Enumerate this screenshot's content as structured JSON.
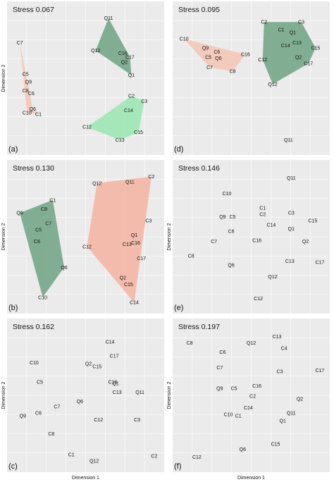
{
  "figure": {
    "x_axis_title": "Dimension 1",
    "y_axis_title": "Dimension 2"
  },
  "chart_data": [
    {
      "type": "scatter",
      "panel_letter": "(a)",
      "stress_label": "Stress 0.067",
      "xlabel": "",
      "ylabel": "Dimension 2",
      "xlim": [
        0,
        100
      ],
      "ylim": [
        0,
        100
      ],
      "grid": true,
      "points": [
        {
          "label": "C7",
          "x": 4,
          "y": 79
        },
        {
          "label": "C5",
          "x": 8,
          "y": 55
        },
        {
          "label": "Q9",
          "x": 10,
          "y": 49
        },
        {
          "label": "C8",
          "x": 8,
          "y": 42
        },
        {
          "label": "C6",
          "x": 12,
          "y": 40
        },
        {
          "label": "Q6",
          "x": 13,
          "y": 28
        },
        {
          "label": "C10",
          "x": 9,
          "y": 25
        },
        {
          "label": "C1",
          "x": 17,
          "y": 24
        },
        {
          "label": "Q11",
          "x": 66,
          "y": 98
        },
        {
          "label": "Q12",
          "x": 57,
          "y": 73
        },
        {
          "label": "C16",
          "x": 76,
          "y": 71
        },
        {
          "label": "C17",
          "x": 81,
          "y": 68
        },
        {
          "label": "Q2",
          "x": 77,
          "y": 64
        },
        {
          "label": "Q1",
          "x": 82,
          "y": 54
        },
        {
          "label": "C2",
          "x": 82,
          "y": 38
        },
        {
          "label": "C3",
          "x": 91,
          "y": 34
        },
        {
          "label": "C14",
          "x": 80,
          "y": 27
        },
        {
          "label": "C12",
          "x": 51,
          "y": 14
        },
        {
          "label": "C15",
          "x": 87,
          "y": 10
        },
        {
          "label": "C13",
          "x": 74,
          "y": 4
        }
      ],
      "hulls": [
        {
          "color": "#f4c6b5",
          "members": [
            "C7",
            "Q6",
            "C1",
            "C10"
          ]
        },
        {
          "color": "#6fa382",
          "members": [
            "Q11",
            "C17",
            "Q1",
            "Q12"
          ]
        },
        {
          "color": "#99e6b0",
          "members": [
            "C2",
            "C3",
            "C15",
            "C13",
            "C12"
          ]
        }
      ]
    },
    {
      "type": "scatter",
      "panel_letter": "(d)",
      "stress_label": "Stress 0.095",
      "xlabel": "",
      "ylabel": "",
      "xlim": [
        0,
        100
      ],
      "ylim": [
        0,
        100
      ],
      "grid": true,
      "points": [
        {
          "label": "C10",
          "x": 3,
          "y": 82
        },
        {
          "label": "Q9",
          "x": 18,
          "y": 75
        },
        {
          "label": "C6",
          "x": 26,
          "y": 72
        },
        {
          "label": "C5",
          "x": 20,
          "y": 68
        },
        {
          "label": "Q6",
          "x": 27,
          "y": 67
        },
        {
          "label": "C16",
          "x": 46,
          "y": 70
        },
        {
          "label": "C7",
          "x": 21,
          "y": 60
        },
        {
          "label": "C8",
          "x": 37,
          "y": 57
        },
        {
          "label": "C2",
          "x": 59,
          "y": 95
        },
        {
          "label": "C3",
          "x": 85,
          "y": 95
        },
        {
          "label": "C1",
          "x": 71,
          "y": 89
        },
        {
          "label": "Q1",
          "x": 79,
          "y": 87
        },
        {
          "label": "C13",
          "x": 82,
          "y": 79
        },
        {
          "label": "C15",
          "x": 95,
          "y": 75
        },
        {
          "label": "C14",
          "x": 74,
          "y": 77
        },
        {
          "label": "Q2",
          "x": 83,
          "y": 68
        },
        {
          "label": "C17",
          "x": 90,
          "y": 63
        },
        {
          "label": "C12",
          "x": 58,
          "y": 66
        },
        {
          "label": "Q12",
          "x": 65,
          "y": 47
        },
        {
          "label": "Q11",
          "x": 76,
          "y": 4
        }
      ],
      "hulls": [
        {
          "color": "#f4c6b5",
          "members": [
            "C10",
            "C16",
            "C8",
            "C7"
          ]
        },
        {
          "color": "#6fa382",
          "members": [
            "C2",
            "C3",
            "C15",
            "C17",
            "Q12",
            "C12"
          ]
        }
      ]
    },
    {
      "type": "scatter",
      "panel_letter": "(b)",
      "stress_label": "Stress 0.130",
      "xlabel": "",
      "ylabel": "Dimension 2",
      "xlim": [
        0,
        100
      ],
      "ylim": [
        0,
        100
      ],
      "grid": true,
      "points": [
        {
          "label": "C1",
          "x": 27,
          "y": 80
        },
        {
          "label": "C8",
          "x": 21,
          "y": 73
        },
        {
          "label": "Q9",
          "x": 4,
          "y": 70
        },
        {
          "label": "C7",
          "x": 24,
          "y": 62
        },
        {
          "label": "C5",
          "x": 17,
          "y": 57
        },
        {
          "label": "C6",
          "x": 16,
          "y": 48
        },
        {
          "label": "Q6",
          "x": 35,
          "y": 28
        },
        {
          "label": "C10",
          "x": 20,
          "y": 5
        },
        {
          "label": "C2",
          "x": 96,
          "y": 98
        },
        {
          "label": "Q12",
          "x": 58,
          "y": 93
        },
        {
          "label": "Q11",
          "x": 81,
          "y": 94
        },
        {
          "label": "C3",
          "x": 94,
          "y": 64
        },
        {
          "label": "Q1",
          "x": 84,
          "y": 53
        },
        {
          "label": "C16",
          "x": 85,
          "y": 47
        },
        {
          "label": "C13",
          "x": 79,
          "y": 46
        },
        {
          "label": "C12",
          "x": 51,
          "y": 44
        },
        {
          "label": "C17",
          "x": 89,
          "y": 35
        },
        {
          "label": "Q2",
          "x": 76,
          "y": 20
        },
        {
          "label": "C15",
          "x": 80,
          "y": 15
        },
        {
          "label": "C14",
          "x": 84,
          "y": 1
        }
      ],
      "hulls": [
        {
          "color": "#6fa382",
          "members": [
            "C1",
            "Q9",
            "C10",
            "Q6"
          ]
        },
        {
          "color": "#f4b3a0",
          "members": [
            "Q12",
            "C2",
            "C14",
            "C12"
          ]
        }
      ]
    },
    {
      "type": "scatter",
      "panel_letter": "(e)",
      "stress_label": "Stress 0.146",
      "xlabel": "",
      "ylabel": "Dimension 2",
      "xlim": [
        0,
        100
      ],
      "ylim": [
        0,
        100
      ],
      "grid": true,
      "points": [
        {
          "label": "Q11",
          "x": 78,
          "y": 97
        },
        {
          "label": "C10",
          "x": 33,
          "y": 85
        },
        {
          "label": "C1",
          "x": 58,
          "y": 74
        },
        {
          "label": "C2",
          "x": 58,
          "y": 69
        },
        {
          "label": "C3",
          "x": 78,
          "y": 70
        },
        {
          "label": "Q9",
          "x": 30,
          "y": 67
        },
        {
          "label": "C5",
          "x": 37,
          "y": 67
        },
        {
          "label": "C15",
          "x": 93,
          "y": 64
        },
        {
          "label": "C14",
          "x": 64,
          "y": 61
        },
        {
          "label": "Q1",
          "x": 78,
          "y": 58
        },
        {
          "label": "C6",
          "x": 36,
          "y": 56
        },
        {
          "label": "C7",
          "x": 24,
          "y": 48
        },
        {
          "label": "C16",
          "x": 54,
          "y": 49
        },
        {
          "label": "Q2",
          "x": 88,
          "y": 48
        },
        {
          "label": "C8",
          "x": 8,
          "y": 37
        },
        {
          "label": "C13",
          "x": 77,
          "y": 33
        },
        {
          "label": "C17",
          "x": 98,
          "y": 32
        },
        {
          "label": "Q6",
          "x": 36,
          "y": 30
        },
        {
          "label": "Q12",
          "x": 65,
          "y": 21
        },
        {
          "label": "C12",
          "x": 55,
          "y": 4
        }
      ],
      "hulls": []
    },
    {
      "type": "scatter",
      "panel_letter": "(c)",
      "stress_label": "Stress 0.162",
      "xlabel": "Dimension 1",
      "ylabel": "Dimension 2",
      "xlim": [
        0,
        100
      ],
      "ylim": [
        0,
        100
      ],
      "grid": true,
      "points": [
        {
          "label": "C14",
          "x": 67,
          "y": 93
        },
        {
          "label": "C17",
          "x": 70,
          "y": 82
        },
        {
          "label": "C10",
          "x": 14,
          "y": 77
        },
        {
          "label": "Q2",
          "x": 52,
          "y": 76
        },
        {
          "label": "C15",
          "x": 58,
          "y": 74
        },
        {
          "label": "C5",
          "x": 18,
          "y": 62
        },
        {
          "label": "C16",
          "x": 69,
          "y": 62
        },
        {
          "label": "Q1",
          "x": 71,
          "y": 61
        },
        {
          "label": "C13",
          "x": 72,
          "y": 54
        },
        {
          "label": "Q11",
          "x": 88,
          "y": 54
        },
        {
          "label": "Q6",
          "x": 46,
          "y": 47
        },
        {
          "label": "C7",
          "x": 30,
          "y": 43
        },
        {
          "label": "C6",
          "x": 17,
          "y": 38
        },
        {
          "label": "Q9",
          "x": 6,
          "y": 36
        },
        {
          "label": "C12",
          "x": 59,
          "y": 33
        },
        {
          "label": "C3",
          "x": 86,
          "y": 33
        },
        {
          "label": "C8",
          "x": 26,
          "y": 22
        },
        {
          "label": "C1",
          "x": 40,
          "y": 6
        },
        {
          "label": "C2",
          "x": 98,
          "y": 5
        },
        {
          "label": "Q12",
          "x": 56,
          "y": 1
        }
      ],
      "hulls": []
    },
    {
      "type": "scatter",
      "panel_letter": "(f)",
      "stress_label": "Stress 0.197",
      "xlabel": "Dimension 1",
      "ylabel": "Dimension 2",
      "xlim": [
        0,
        100
      ],
      "ylim": [
        0,
        100
      ],
      "grid": true,
      "points": [
        {
          "label": "C13",
          "x": 68,
          "y": 97
        },
        {
          "label": "C8",
          "x": 7,
          "y": 92
        },
        {
          "label": "Q12",
          "x": 50,
          "y": 92
        },
        {
          "label": "C6",
          "x": 30,
          "y": 85
        },
        {
          "label": "C4",
          "x": 73,
          "y": 88
        },
        {
          "label": "C7",
          "x": 28,
          "y": 73
        },
        {
          "label": "C3",
          "x": 70,
          "y": 70
        },
        {
          "label": "C17",
          "x": 98,
          "y": 71
        },
        {
          "label": "C16",
          "x": 54,
          "y": 59
        },
        {
          "label": "Q9",
          "x": 28,
          "y": 57
        },
        {
          "label": "C5",
          "x": 38,
          "y": 57
        },
        {
          "label": "C2",
          "x": 51,
          "y": 51
        },
        {
          "label": "Q2",
          "x": 84,
          "y": 49
        },
        {
          "label": "C14",
          "x": 48,
          "y": 42
        },
        {
          "label": "Q11",
          "x": 78,
          "y": 38
        },
        {
          "label": "C10",
          "x": 34,
          "y": 37
        },
        {
          "label": "C1",
          "x": 41,
          "y": 36
        },
        {
          "label": "Q1",
          "x": 72,
          "y": 32
        },
        {
          "label": "C15",
          "x": 67,
          "y": 14
        },
        {
          "label": "Q6",
          "x": 44,
          "y": 10
        },
        {
          "label": "C12",
          "x": 12,
          "y": 4
        }
      ],
      "hulls": []
    }
  ]
}
